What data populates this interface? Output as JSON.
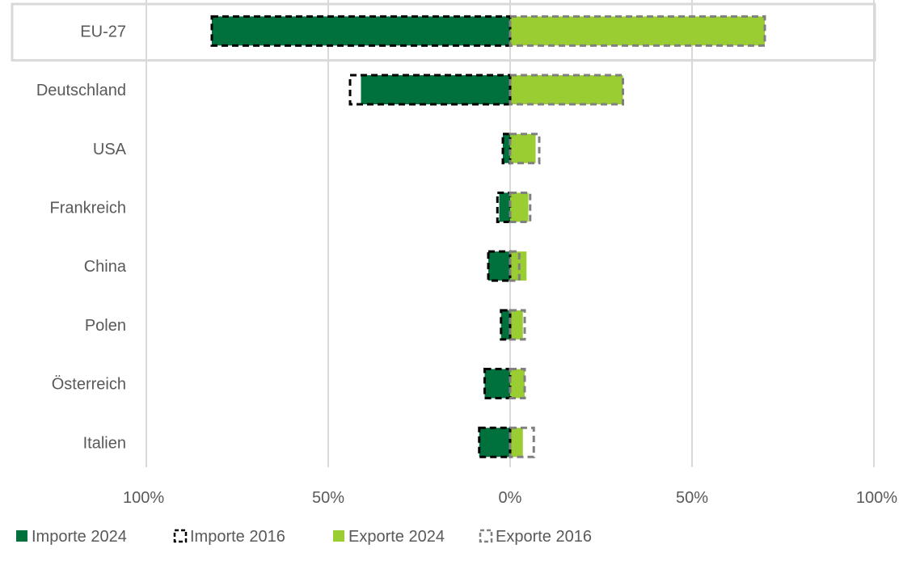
{
  "chart_data": {
    "type": "bar",
    "orientation": "horizontal-diverging",
    "categories": [
      "EU-27",
      "Deutschland",
      "USA",
      "Frankreich",
      "China",
      "Polen",
      "Österreich",
      "Italien"
    ],
    "highlighted_category": "EU-27",
    "x_ticks": [
      -100,
      -50,
      0,
      50,
      100
    ],
    "x_tick_labels": [
      "100%",
      "50%",
      "0%",
      "50%",
      "100%"
    ],
    "xlim": [
      -100,
      100
    ],
    "grid": true,
    "legend_position": "bottom-left",
    "series": [
      {
        "name": "Importe 2024",
        "style": "filled",
        "side": "left",
        "color": "#00703c",
        "values": [
          -82,
          -41,
          -2,
          -3,
          -6,
          -2.5,
          -7,
          -8.5
        ]
      },
      {
        "name": "Importe 2016",
        "style": "dashed-outline",
        "side": "left",
        "color": "#000000",
        "values": [
          -82,
          -44,
          -2,
          -3.5,
          -6,
          -2.5,
          -7,
          -8.5
        ]
      },
      {
        "name": "Exporte 2024",
        "style": "filled",
        "side": "right",
        "color": "#9acd32",
        "values": [
          70,
          31,
          7,
          5,
          4.5,
          3.5,
          4,
          3.5
        ]
      },
      {
        "name": "Exporte 2016",
        "style": "dashed-outline",
        "side": "right",
        "color": "#808080",
        "values": [
          70,
          31,
          8,
          5.5,
          2.5,
          4,
          4,
          6.5
        ]
      }
    ]
  }
}
